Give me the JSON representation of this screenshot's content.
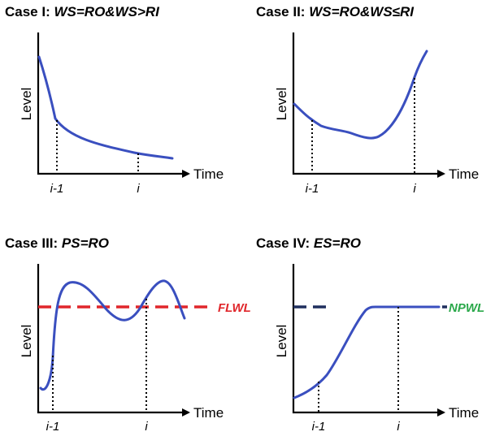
{
  "panels": [
    {
      "case_label": "Case I: ",
      "condition": "WS=RO&WS>RI",
      "y_label": "Level",
      "x_label": "Time",
      "tick_left": "i-1",
      "tick_right": "i",
      "curve_color": "#3a4fbf"
    },
    {
      "case_label": "Case II: ",
      "condition": "WS=RO&WS≤RI",
      "y_label": "Level",
      "x_label": "Time",
      "tick_left": "i-1",
      "tick_right": "i",
      "curve_color": "#3a4fbf"
    },
    {
      "case_label": "Case III: ",
      "condition": "PS=RO",
      "y_label": "Level",
      "x_label": "Time",
      "tick_left": "i-1",
      "tick_right": "i",
      "reference_label": "FLWL",
      "reference_color": "#e0262b",
      "curve_color": "#3a4fbf"
    },
    {
      "case_label": "Case IV: ",
      "condition": "ES=RO",
      "y_label": "Level",
      "x_label": "Time",
      "tick_left": "i-1",
      "tick_right": "i",
      "reference_label": "NPWL",
      "reference_color": "#2aa84a",
      "reference_line_color": "#1f2f5e",
      "curve_color": "#3a4fbf"
    }
  ]
}
